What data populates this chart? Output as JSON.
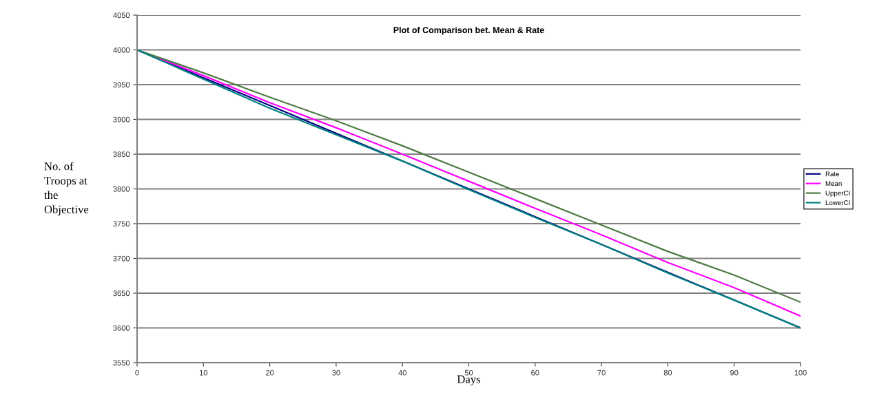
{
  "chart_data": {
    "type": "line",
    "title": "Plot of Comparison bet. Mean & Rate",
    "xlabel": "Days",
    "ylabel": "No. of\nTroops at\nthe\nObjective",
    "x": [
      0,
      10,
      20,
      30,
      40,
      50,
      60,
      70,
      80,
      90,
      100
    ],
    "series": [
      {
        "name": "Rate",
        "color": "#000080",
        "values": [
          4000,
          3960,
          3920,
          3880,
          3840,
          3800,
          3760,
          3720,
          3680,
          3640,
          3600
        ]
      },
      {
        "name": "Mean",
        "color": "#ff00ff",
        "values": [
          4000,
          3963,
          3924,
          3888,
          3850,
          3811,
          3772,
          3734,
          3694,
          3658,
          3617
        ]
      },
      {
        "name": "UpperCI",
        "color": "#4f7a45",
        "values": [
          4000,
          3967,
          3932,
          3898,
          3862,
          3824,
          3786,
          3748,
          3710,
          3676,
          3637
        ]
      },
      {
        "name": "LowerCI",
        "color": "#008080",
        "values": [
          4000,
          3958,
          3916,
          3878,
          3840,
          3799,
          3759,
          3720,
          3679,
          3640,
          3600
        ]
      }
    ],
    "xlim": [
      0,
      100
    ],
    "xticks": [
      0,
      10,
      20,
      30,
      40,
      50,
      60,
      70,
      80,
      90,
      100
    ],
    "ylim": [
      3550,
      4050
    ],
    "yticks": [
      3550,
      3600,
      3650,
      3700,
      3750,
      3800,
      3850,
      3900,
      3950,
      4000,
      4050
    ],
    "grid": "y",
    "legend": "right",
    "marker": "none",
    "line_style": "solid"
  }
}
